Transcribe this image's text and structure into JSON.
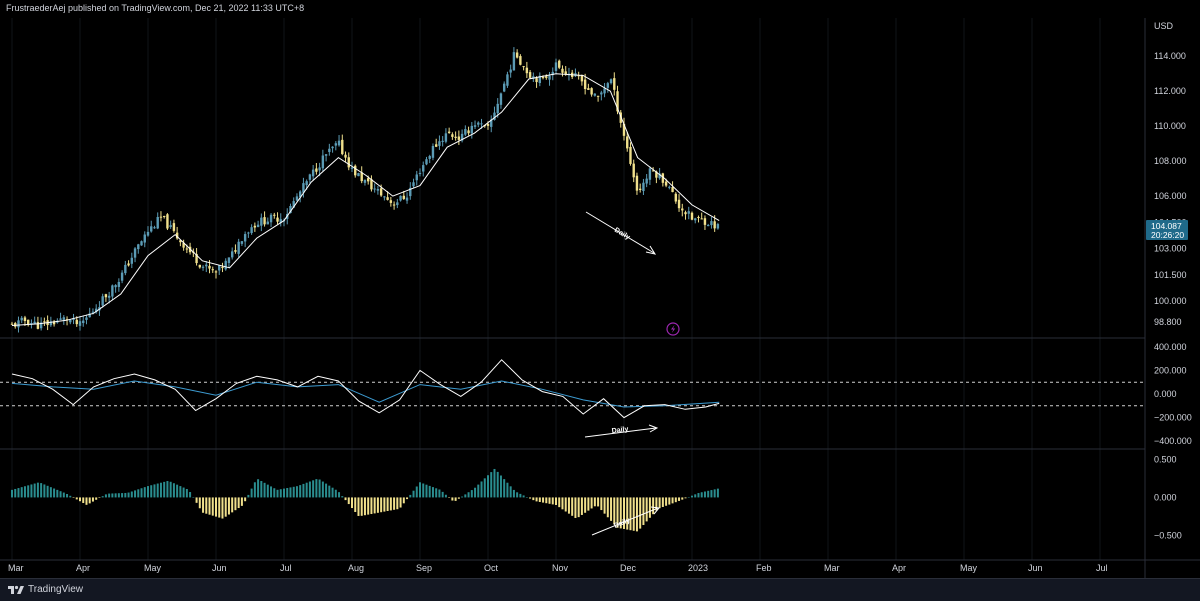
{
  "header": {
    "publish_text": "FrustraederAej published on TradingView.com, Dec 21, 2022 11:33 UTC+8"
  },
  "footer": {
    "logo_text": "TradingView"
  },
  "colors": {
    "bull": "#5b9bb5",
    "bear": "#f0e08c",
    "ma": "#ffffff",
    "cci": "#ffffff",
    "cci_signal": "#3d9bd1",
    "osc_pos": "#2a8d8f",
    "osc_neg": "#f0e08c",
    "price_tag": "#1f6a8a",
    "lightning": "#9c27b0"
  },
  "chart_data": [
    {
      "type": "candlestick",
      "currency": "USD",
      "x_tick_labels": [
        "Mar",
        "Apr",
        "May",
        "Jun",
        "Jul",
        "Aug",
        "Sep",
        "Oct",
        "Nov",
        "Dec",
        "2023",
        "Feb",
        "Mar",
        "Apr",
        "May",
        "Jun",
        "Jul"
      ],
      "y_tick_labels": [
        "114.000",
        "112.000",
        "110.000",
        "108.000",
        "106.000",
        "104.500",
        "103.000",
        "101.500",
        "100.000",
        "98.800"
      ],
      "ylim": [
        98.0,
        115.5
      ],
      "last_price": "104.087",
      "countdown": "20:26:20",
      "close_path": [
        [
          0.0,
          98.6
        ],
        [
          0.2,
          98.9
        ],
        [
          0.4,
          98.6
        ],
        [
          0.6,
          98.8
        ],
        [
          0.8,
          99.0
        ],
        [
          1.0,
          98.6
        ],
        [
          1.2,
          99.5
        ],
        [
          1.4,
          100.4
        ],
        [
          1.6,
          101.4
        ],
        [
          1.8,
          102.8
        ],
        [
          2.0,
          104.0
        ],
        [
          2.2,
          104.8
        ],
        [
          2.4,
          103.8
        ],
        [
          2.6,
          102.9
        ],
        [
          2.8,
          102.0
        ],
        [
          3.0,
          101.6
        ],
        [
          3.2,
          102.4
        ],
        [
          3.4,
          103.8
        ],
        [
          3.6,
          104.5
        ],
        [
          3.8,
          104.7
        ],
        [
          4.0,
          104.8
        ],
        [
          4.2,
          106.0
        ],
        [
          4.4,
          107.2
        ],
        [
          4.6,
          108.3
        ],
        [
          4.8,
          109.0
        ],
        [
          5.0,
          107.5
        ],
        [
          5.2,
          106.8
        ],
        [
          5.4,
          106.2
        ],
        [
          5.6,
          105.6
        ],
        [
          5.8,
          106.0
        ],
        [
          6.0,
          107.5
        ],
        [
          6.2,
          108.8
        ],
        [
          6.4,
          109.6
        ],
        [
          6.6,
          109.3
        ],
        [
          6.8,
          110.2
        ],
        [
          7.0,
          109.8
        ],
        [
          7.2,
          112.0
        ],
        [
          7.4,
          114.2
        ],
        [
          7.6,
          113.0
        ],
        [
          7.8,
          112.6
        ],
        [
          8.0,
          113.5
        ],
        [
          8.2,
          113.0
        ],
        [
          8.4,
          112.5
        ],
        [
          8.6,
          111.5
        ],
        [
          8.8,
          112.8
        ],
        [
          9.0,
          109.5
        ],
        [
          9.2,
          106.2
        ],
        [
          9.4,
          107.5
        ],
        [
          9.6,
          106.9
        ],
        [
          9.8,
          105.5
        ],
        [
          10.0,
          104.7
        ],
        [
          10.2,
          104.6
        ],
        [
          10.4,
          104.2
        ]
      ],
      "ma_path": [
        [
          0.0,
          98.6
        ],
        [
          0.4,
          98.7
        ],
        [
          0.8,
          98.9
        ],
        [
          1.2,
          99.3
        ],
        [
          1.6,
          100.4
        ],
        [
          2.0,
          102.6
        ],
        [
          2.4,
          103.8
        ],
        [
          2.8,
          102.3
        ],
        [
          3.2,
          101.9
        ],
        [
          3.6,
          103.6
        ],
        [
          4.0,
          104.6
        ],
        [
          4.4,
          106.8
        ],
        [
          4.8,
          108.2
        ],
        [
          5.2,
          107.2
        ],
        [
          5.6,
          106.0
        ],
        [
          6.0,
          106.6
        ],
        [
          6.4,
          108.8
        ],
        [
          6.8,
          109.6
        ],
        [
          7.2,
          110.8
        ],
        [
          7.6,
          112.7
        ],
        [
          8.0,
          113.0
        ],
        [
          8.4,
          112.9
        ],
        [
          8.8,
          112.0
        ],
        [
          9.2,
          108.2
        ],
        [
          9.6,
          107.0
        ],
        [
          10.0,
          105.5
        ],
        [
          10.4,
          104.6
        ]
      ],
      "annotation": "Daily"
    },
    {
      "type": "line",
      "y_tick_labels": [
        "400.000",
        "200.000",
        "0.000",
        "−200.000",
        "−400.000"
      ],
      "ylim": [
        -450,
        450
      ],
      "levels": [
        100,
        -100
      ],
      "series": [
        {
          "values": [
            [
              0.0,
              170
            ],
            [
              0.3,
              130
            ],
            [
              0.6,
              40
            ],
            [
              0.9,
              -90
            ],
            [
              1.2,
              60
            ],
            [
              1.5,
              130
            ],
            [
              1.8,
              170
            ],
            [
              2.1,
              120
            ],
            [
              2.4,
              40
            ],
            [
              2.7,
              -140
            ],
            [
              3.0,
              -40
            ],
            [
              3.3,
              90
            ],
            [
              3.6,
              150
            ],
            [
              3.9,
              120
            ],
            [
              4.2,
              60
            ],
            [
              4.5,
              150
            ],
            [
              4.8,
              110
            ],
            [
              5.1,
              -60
            ],
            [
              5.4,
              -160
            ],
            [
              5.7,
              -50
            ],
            [
              6.0,
              200
            ],
            [
              6.3,
              80
            ],
            [
              6.6,
              -20
            ],
            [
              6.9,
              100
            ],
            [
              7.2,
              290
            ],
            [
              7.5,
              120
            ],
            [
              7.8,
              20
            ],
            [
              8.1,
              -20
            ],
            [
              8.4,
              -170
            ],
            [
              8.7,
              -40
            ],
            [
              9.0,
              -200
            ],
            [
              9.3,
              -100
            ],
            [
              9.6,
              -90
            ],
            [
              9.9,
              -130
            ],
            [
              10.2,
              -110
            ],
            [
              10.4,
              -80
            ]
          ]
        },
        {
          "values": [
            [
              0.0,
              90
            ],
            [
              0.6,
              60
            ],
            [
              1.2,
              40
            ],
            [
              1.8,
              110
            ],
            [
              2.4,
              60
            ],
            [
              3.0,
              -10
            ],
            [
              3.6,
              100
            ],
            [
              4.2,
              60
            ],
            [
              4.8,
              80
            ],
            [
              5.4,
              -70
            ],
            [
              6.0,
              80
            ],
            [
              6.6,
              40
            ],
            [
              7.2,
              110
            ],
            [
              7.8,
              40
            ],
            [
              8.4,
              -50
            ],
            [
              9.0,
              -110
            ],
            [
              9.6,
              -100
            ],
            [
              10.4,
              -70
            ]
          ]
        }
      ],
      "annotation": "Daily"
    },
    {
      "type": "bar",
      "y_tick_labels": [
        "0.500",
        "0.000",
        "−0.500"
      ],
      "ylim": [
        -0.8,
        0.6
      ],
      "values": [
        [
          0.0,
          0.1
        ],
        [
          0.4,
          0.2
        ],
        [
          0.8,
          0.05
        ],
        [
          1.1,
          -0.1
        ],
        [
          1.4,
          0.05
        ],
        [
          1.7,
          0.06
        ],
        [
          2.0,
          0.15
        ],
        [
          2.3,
          0.22
        ],
        [
          2.6,
          0.1
        ],
        [
          2.8,
          -0.2
        ],
        [
          3.1,
          -0.28
        ],
        [
          3.4,
          -0.1
        ],
        [
          3.6,
          0.25
        ],
        [
          3.9,
          0.1
        ],
        [
          4.2,
          0.15
        ],
        [
          4.5,
          0.25
        ],
        [
          4.8,
          0.08
        ],
        [
          5.1,
          -0.25
        ],
        [
          5.4,
          -0.2
        ],
        [
          5.7,
          -0.15
        ],
        [
          6.0,
          0.2
        ],
        [
          6.3,
          0.1
        ],
        [
          6.5,
          -0.06
        ],
        [
          6.8,
          0.12
        ],
        [
          7.1,
          0.38
        ],
        [
          7.4,
          0.08
        ],
        [
          7.7,
          -0.05
        ],
        [
          8.0,
          -0.1
        ],
        [
          8.3,
          -0.28
        ],
        [
          8.6,
          -0.1
        ],
        [
          8.9,
          -0.4
        ],
        [
          9.2,
          -0.45
        ],
        [
          9.5,
          -0.15
        ],
        [
          9.8,
          -0.05
        ],
        [
          10.1,
          0.06
        ],
        [
          10.4,
          0.12
        ]
      ],
      "annotation": "Daily"
    }
  ]
}
